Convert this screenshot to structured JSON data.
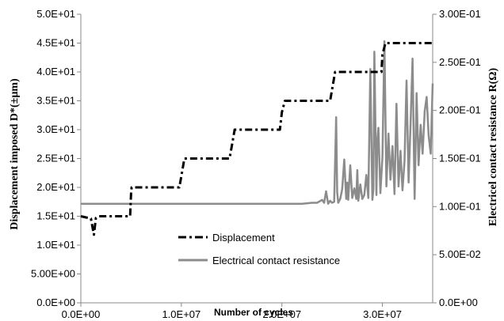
{
  "chart_data": {
    "type": "line",
    "xlabel": "Number of cycles",
    "ylabel": "Displacement imposed D*(±µm)",
    "y2label": "Electricel contact resistance R(Ω)",
    "xlim": [
      0,
      35000000
    ],
    "ylim": [
      0,
      50
    ],
    "y2lim": [
      0,
      0.3
    ],
    "x_ticks": [
      0,
      10000000,
      20000000,
      30000000
    ],
    "x_tick_labels": [
      "0.0E+00",
      "1.0E+07",
      "2.0E+07",
      "3.0E+07"
    ],
    "y_ticks": [
      0,
      5,
      10,
      15,
      20,
      25,
      30,
      35,
      40,
      45,
      50
    ],
    "y_tick_labels": [
      "0.0E+00",
      "5.00E+00",
      "1.0E+01",
      "1.5E+01",
      "2.0E+01",
      "2.5E+01",
      "3.0E+01",
      "3.5E+01",
      "4.0E+01",
      "4.5E+01",
      "5.0E+01"
    ],
    "y2_ticks": [
      0,
      0.05,
      0.1,
      0.15,
      0.2,
      0.25,
      0.3
    ],
    "y2_tick_labels": [
      "0.0E+00",
      "5.00E-02",
      "1.00E-01",
      "1.50E-01",
      "2.00E-01",
      "2.50E-01",
      "3.00E-01"
    ],
    "grid": false,
    "legend_position": "bottom-center",
    "series": [
      {
        "name": "Displacement",
        "axis": "left",
        "color": "#000000",
        "style": "dash-dot",
        "x": [
          0,
          1000000,
          1300000,
          1500000,
          1800000,
          3000000,
          4900000,
          5000000,
          5050000,
          5300000,
          6500000,
          8000000,
          9800000,
          10000000,
          10300000,
          12000000,
          14000000,
          14800000,
          15000000,
          15300000,
          17000000,
          19000000,
          19800000,
          20000000,
          20300000,
          22000000,
          24000000,
          24800000,
          25000000,
          25300000,
          27000000,
          29500000,
          29900000,
          30000000,
          30300000,
          32000000,
          34000000,
          35000000
        ],
        "y": [
          15,
          14.6,
          11.8,
          14.7,
          15,
          15,
          15,
          19,
          20,
          20,
          20,
          20,
          20,
          22,
          25,
          25,
          25,
          25,
          27,
          30,
          30,
          30,
          30,
          33,
          35,
          35,
          35,
          35,
          37,
          40,
          40,
          40,
          40,
          43,
          45,
          45,
          45,
          45
        ]
      },
      {
        "name": "Electrical contact resistance",
        "axis": "right",
        "color": "#8c8c8c",
        "style": "solid",
        "x": [
          0,
          5000000,
          10000000,
          15000000,
          20000000,
          22000000,
          23000000,
          23500000,
          24000000,
          24200000,
          24400000,
          24600000,
          24800000,
          25000000,
          25200000,
          25400000,
          25500000,
          25600000,
          25800000,
          26000000,
          26200000,
          26400000,
          26500000,
          26600000,
          26800000,
          27000000,
          27200000,
          27400000,
          27500000,
          27600000,
          27800000,
          28000000,
          28200000,
          28400000,
          28600000,
          28800000,
          29000000,
          29100000,
          29200000,
          29400000,
          29500000,
          29600000,
          29800000,
          30000000,
          30200000,
          30400000,
          30600000,
          30800000,
          31000000,
          31200000,
          31400000,
          31600000,
          31800000,
          32000000,
          32200000,
          32400000,
          32600000,
          32800000,
          33000000,
          33200000,
          33400000,
          33600000,
          33800000,
          34000000,
          34200000,
          34400000,
          34600000,
          34800000,
          35000000
        ],
        "y": [
          0.103,
          0.103,
          0.103,
          0.103,
          0.103,
          0.103,
          0.104,
          0.104,
          0.107,
          0.104,
          0.116,
          0.103,
          0.106,
          0.104,
          0.105,
          0.193,
          0.115,
          0.104,
          0.108,
          0.118,
          0.149,
          0.108,
          0.125,
          0.107,
          0.143,
          0.109,
          0.119,
          0.108,
          0.138,
          0.106,
          0.123,
          0.108,
          0.112,
          0.133,
          0.109,
          0.243,
          0.107,
          0.118,
          0.261,
          0.112,
          0.168,
          0.182,
          0.114,
          0.152,
          0.272,
          0.121,
          0.176,
          0.128,
          0.163,
          0.113,
          0.207,
          0.121,
          0.158,
          0.117,
          0.148,
          0.231,
          0.125,
          0.186,
          0.254,
          0.108,
          0.218,
          0.143,
          0.185,
          0.155,
          0.199,
          0.214,
          0.174,
          0.155,
          0.228
        ]
      }
    ]
  }
}
